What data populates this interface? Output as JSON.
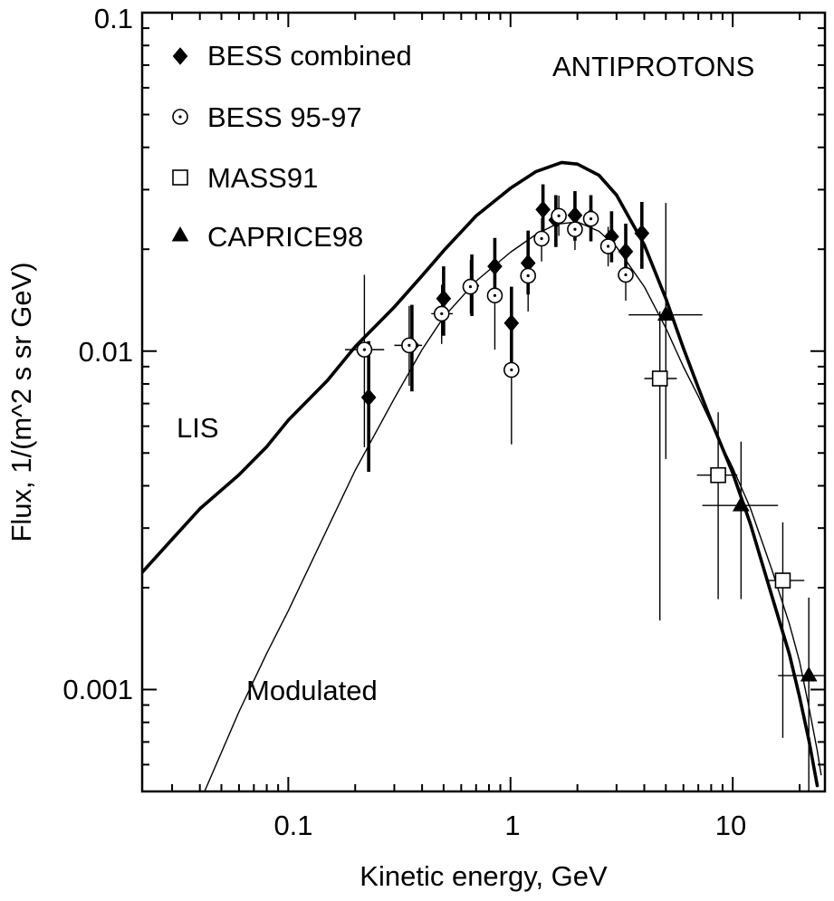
{
  "chart_data": {
    "type": "scatter",
    "title": "ANTIPROTONS",
    "xlabel": "Kinetic energy, GeV",
    "ylabel": "Flux, 1/(m^2 s sr GeV)",
    "x_scale": "log",
    "y_scale": "log",
    "xlim": [
      0.022,
      26
    ],
    "ylim": [
      0.0005,
      0.1
    ],
    "x_ticks": [
      {
        "value": 0.1,
        "label": "0.1"
      },
      {
        "value": 1,
        "label": "1"
      },
      {
        "value": 10,
        "label": "10"
      }
    ],
    "y_ticks": [
      {
        "value": 0.001,
        "label": "0.001"
      },
      {
        "value": 0.01,
        "label": "0.01"
      },
      {
        "value": 0.1,
        "label": "0.1"
      }
    ],
    "grid": false,
    "legend_position": "top-left",
    "annotations": [
      {
        "text": "ANTIPROTONS",
        "x": 3.5,
        "y": 0.074
      },
      {
        "text": "LIS",
        "x": 0.04,
        "y": 0.0063
      },
      {
        "text": "Modulated",
        "x": 0.06,
        "y": 0.00095
      }
    ],
    "series": [
      {
        "name": "BESS combined",
        "marker": "diamond",
        "points": [
          {
            "x": 0.23,
            "y": 0.0073,
            "ylo": 0.0044,
            "yhi": 0.0107
          },
          {
            "x": 0.36,
            "y": 0.0104,
            "ylo": 0.0076,
            "yhi": 0.0137
          },
          {
            "x": 0.5,
            "y": 0.0143,
            "ylo": 0.0111,
            "yhi": 0.0178
          },
          {
            "x": 0.67,
            "y": 0.0156,
            "ylo": 0.0127,
            "yhi": 0.0193
          },
          {
            "x": 0.85,
            "y": 0.0178,
            "ylo": 0.0144,
            "yhi": 0.0216
          },
          {
            "x": 1.01,
            "y": 0.0121,
            "ylo": 0.0089,
            "yhi": 0.0155
          },
          {
            "x": 1.2,
            "y": 0.0182,
            "ylo": 0.0147,
            "yhi": 0.0227
          },
          {
            "x": 1.4,
            "y": 0.0262,
            "ylo": 0.0216,
            "yhi": 0.0311
          },
          {
            "x": 1.6,
            "y": 0.0244,
            "ylo": 0.0203,
            "yhi": 0.0289
          },
          {
            "x": 1.95,
            "y": 0.0252,
            "ylo": 0.0212,
            "yhi": 0.0297
          },
          {
            "x": 2.3,
            "y": 0.0249,
            "ylo": 0.0211,
            "yhi": 0.0289
          },
          {
            "x": 2.85,
            "y": 0.0218,
            "ylo": 0.0183,
            "yhi": 0.0259
          },
          {
            "x": 3.3,
            "y": 0.0197,
            "ylo": 0.0161,
            "yhi": 0.0238
          },
          {
            "x": 3.9,
            "y": 0.0223,
            "ylo": 0.0175,
            "yhi": 0.0276
          }
        ]
      },
      {
        "name": "BESS 95-97",
        "marker": "circle-dot",
        "points": [
          {
            "x": 0.22,
            "y": 0.0101,
            "ylo": 0.0052,
            "yhi": 0.0168,
            "xlo": 0.18,
            "xhi": 0.27
          },
          {
            "x": 0.35,
            "y": 0.0104,
            "ylo": 0.0079,
            "yhi": 0.0136,
            "xlo": 0.3,
            "xhi": 0.4
          },
          {
            "x": 0.49,
            "y": 0.0129,
            "ylo": 0.0105,
            "yhi": 0.0157,
            "xlo": 0.44,
            "xhi": 0.55
          },
          {
            "x": 0.66,
            "y": 0.0155,
            "ylo": 0.0129,
            "yhi": 0.0186
          },
          {
            "x": 0.85,
            "y": 0.0146,
            "ylo": 0.0101,
            "yhi": 0.0186
          },
          {
            "x": 1.01,
            "y": 0.0088,
            "ylo": 0.0053,
            "yhi": 0.0118
          },
          {
            "x": 1.2,
            "y": 0.0167,
            "ylo": 0.0131,
            "yhi": 0.0203
          },
          {
            "x": 1.38,
            "y": 0.0215,
            "ylo": 0.0184,
            "yhi": 0.0247
          },
          {
            "x": 1.65,
            "y": 0.0251,
            "ylo": 0.0219,
            "yhi": 0.0288
          },
          {
            "x": 1.95,
            "y": 0.0229,
            "ylo": 0.0199,
            "yhi": 0.0262
          },
          {
            "x": 2.3,
            "y": 0.0246,
            "ylo": 0.0212,
            "yhi": 0.0281
          },
          {
            "x": 2.75,
            "y": 0.0204,
            "ylo": 0.0178,
            "yhi": 0.0233
          },
          {
            "x": 3.3,
            "y": 0.0168,
            "ylo": 0.0141,
            "yhi": 0.0199
          }
        ]
      },
      {
        "name": "MASS91",
        "marker": "square",
        "points": [
          {
            "x": 4.7,
            "y": 0.0083,
            "ylo": 0.0016,
            "yhi": 0.0131,
            "xlo": 4.0,
            "xhi": 5.6
          },
          {
            "x": 8.6,
            "y": 0.0043,
            "ylo": 0.00185,
            "yhi": 0.0066,
            "xlo": 6.9,
            "xhi": 10.5
          },
          {
            "x": 16.8,
            "y": 0.0021,
            "ylo": 0.00072,
            "yhi": 0.00312,
            "xlo": 14.5,
            "xhi": 21.0
          }
        ]
      },
      {
        "name": "CAPRICE98",
        "marker": "triangle",
        "points": [
          {
            "x": 5.0,
            "y": 0.0128,
            "ylo": 0.0048,
            "yhi": 0.0274,
            "xlo": 3.4,
            "xhi": 7.3
          },
          {
            "x": 10.9,
            "y": 0.0035,
            "ylo": 0.00185,
            "yhi": 0.0054,
            "xlo": 7.3,
            "xhi": 16.0
          },
          {
            "x": 22.0,
            "y": 0.0011,
            "ylo": 0.0005,
            "yhi": 0.00187,
            "xlo": 16.0,
            "xhi": 26.0
          }
        ]
      }
    ],
    "curves": [
      {
        "name": "LIS",
        "style": "thick",
        "points": [
          [
            0.022,
            0.00222
          ],
          [
            0.03,
            0.00278
          ],
          [
            0.04,
            0.00342
          ],
          [
            0.06,
            0.00431
          ],
          [
            0.08,
            0.00522
          ],
          [
            0.1,
            0.00625
          ],
          [
            0.15,
            0.00819
          ],
          [
            0.2,
            0.0103
          ],
          [
            0.3,
            0.0135
          ],
          [
            0.4,
            0.0167
          ],
          [
            0.5,
            0.0198
          ],
          [
            0.7,
            0.0251
          ],
          [
            1.0,
            0.0303
          ],
          [
            1.3,
            0.0339
          ],
          [
            1.7,
            0.0361
          ],
          [
            2.0,
            0.0357
          ],
          [
            2.5,
            0.0331
          ],
          [
            3.0,
            0.0289
          ],
          [
            4.0,
            0.0206
          ],
          [
            5.0,
            0.0143
          ],
          [
            6.0,
            0.0102
          ],
          [
            7.0,
            0.00779
          ],
          [
            8.0,
            0.00622
          ],
          [
            10.0,
            0.00436
          ],
          [
            12.0,
            0.00309
          ],
          [
            15.0,
            0.00189
          ],
          [
            18.0,
            0.00127
          ],
          [
            20.0,
            0.00095
          ],
          [
            22.0,
            0.00071
          ],
          [
            24.0,
            0.00052
          ]
        ]
      },
      {
        "name": "Modulated",
        "style": "thin",
        "points": [
          [
            0.042,
            0.0005
          ],
          [
            0.06,
            0.00086
          ],
          [
            0.08,
            0.00128
          ],
          [
            0.1,
            0.00171
          ],
          [
            0.15,
            0.00299
          ],
          [
            0.2,
            0.00444
          ],
          [
            0.3,
            0.00725
          ],
          [
            0.4,
            0.0101
          ],
          [
            0.5,
            0.0126
          ],
          [
            0.7,
            0.0161
          ],
          [
            1.0,
            0.0196
          ],
          [
            1.3,
            0.0221
          ],
          [
            1.6,
            0.0237
          ],
          [
            2.0,
            0.0241
          ],
          [
            2.5,
            0.0226
          ],
          [
            3.0,
            0.0203
          ],
          [
            4.0,
            0.0155
          ],
          [
            5.0,
            0.0117
          ],
          [
            6.0,
            0.00899
          ],
          [
            7.0,
            0.00735
          ],
          [
            8.0,
            0.00611
          ],
          [
            10.0,
            0.00452
          ],
          [
            12.0,
            0.00344
          ],
          [
            15.0,
            0.00226
          ],
          [
            18.0,
            0.00156
          ],
          [
            20.0,
            0.00121
          ],
          [
            22.0,
            0.00089
          ],
          [
            24.0,
            0.00066
          ],
          [
            25.0,
            0.00056
          ]
        ]
      }
    ]
  }
}
